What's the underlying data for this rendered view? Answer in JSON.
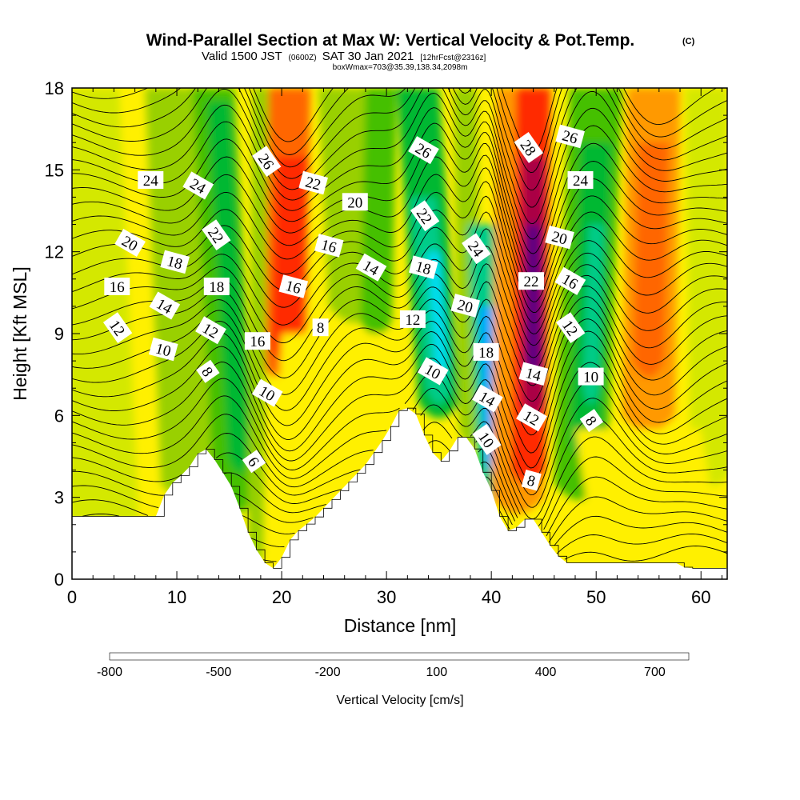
{
  "title": {
    "main": "Wind-Parallel Section at Max W: Vertical Velocity & Pot.Temp.",
    "copyright": "(C)",
    "valid_prefix": "Valid 1500 JST",
    "valid_utc": "(0600Z)",
    "valid_date": "SAT 30 Jan 2021",
    "forecast": "[12hrFcst@2316z]",
    "box_info": "boxWmax=703@35.39,138.34,2098m"
  },
  "chart_data": {
    "type": "heatmap",
    "xlabel": "Distance [nm]",
    "ylabel": "Height [Kft MSL]",
    "xlim": [
      0,
      62.5
    ],
    "ylim": [
      0,
      18
    ],
    "x_ticks": [
      "0",
      "10",
      "20",
      "30",
      "40",
      "50",
      "60"
    ],
    "y_ticks": [
      "0",
      "3",
      "6",
      "9",
      "12",
      "15",
      "18"
    ],
    "colorbar": {
      "label": "Vertical Velocity [cm/s]",
      "tick_labels": [
        "-800",
        "-500",
        "-200",
        "100",
        "400",
        "700"
      ],
      "colors": [
        "#1010ff",
        "#0055ff",
        "#00aaff",
        "#00ddee",
        "#00cc88",
        "#00b830",
        "#44c000",
        "#99d000",
        "#d4e800",
        "#fff000",
        "#ffc800",
        "#ff9900",
        "#ff6600",
        "#ff2a00",
        "#dd0000",
        "#aa0044",
        "#600080"
      ]
    },
    "terrain_height_kft": [
      {
        "x": 0,
        "h": 2.3
      },
      {
        "x": 8,
        "h": 2.3
      },
      {
        "x": 8.5,
        "h": 2.9
      },
      {
        "x": 9.5,
        "h": 3.5
      },
      {
        "x": 11,
        "h": 4.0
      },
      {
        "x": 12,
        "h": 4.6
      },
      {
        "x": 13,
        "h": 4.8
      },
      {
        "x": 14,
        "h": 4.1
      },
      {
        "x": 15,
        "h": 3.6
      },
      {
        "x": 16,
        "h": 2.6
      },
      {
        "x": 17,
        "h": 1.5
      },
      {
        "x": 18,
        "h": 0.8
      },
      {
        "x": 19,
        "h": 0.3
      },
      {
        "x": 20,
        "h": 0.8
      },
      {
        "x": 21,
        "h": 1.6
      },
      {
        "x": 23,
        "h": 2.2
      },
      {
        "x": 26,
        "h": 3.4
      },
      {
        "x": 28,
        "h": 4.2
      },
      {
        "x": 30,
        "h": 5.3
      },
      {
        "x": 31.5,
        "h": 6.4
      },
      {
        "x": 33,
        "h": 6.0
      },
      {
        "x": 34,
        "h": 4.8
      },
      {
        "x": 35.5,
        "h": 4.2
      },
      {
        "x": 36.5,
        "h": 5.2
      },
      {
        "x": 38,
        "h": 5.2
      },
      {
        "x": 39.5,
        "h": 3.6
      },
      {
        "x": 40.5,
        "h": 2.9
      },
      {
        "x": 41,
        "h": 1.9
      },
      {
        "x": 42,
        "h": 1.7
      },
      {
        "x": 43,
        "h": 2.2
      },
      {
        "x": 44,
        "h": 2.2
      },
      {
        "x": 45,
        "h": 1.6
      },
      {
        "x": 46,
        "h": 1.0
      },
      {
        "x": 47,
        "h": 0.6
      },
      {
        "x": 58,
        "h": 0.6
      },
      {
        "x": 58.5,
        "h": 0.4
      },
      {
        "x": 62.5,
        "h": 0.4
      }
    ],
    "theta_contour_labels": [
      {
        "label": "24",
        "x": 7.5,
        "y": 14.6
      },
      {
        "label": "24",
        "x": 12,
        "y": 14.4
      },
      {
        "label": "26",
        "x": 18.5,
        "y": 15.3
      },
      {
        "label": "22",
        "x": 23,
        "y": 14.5
      },
      {
        "label": "20",
        "x": 27,
        "y": 13.8
      },
      {
        "label": "26",
        "x": 33.5,
        "y": 15.7
      },
      {
        "label": "28",
        "x": 43.5,
        "y": 15.8
      },
      {
        "label": "26",
        "x": 47.5,
        "y": 16.2
      },
      {
        "label": "24",
        "x": 48.5,
        "y": 14.6
      },
      {
        "label": "20",
        "x": 5.5,
        "y": 12.3
      },
      {
        "label": "22",
        "x": 13.7,
        "y": 12.6
      },
      {
        "label": "18",
        "x": 9.8,
        "y": 11.6
      },
      {
        "label": "16",
        "x": 4.3,
        "y": 10.7
      },
      {
        "label": "14",
        "x": 8.8,
        "y": 10.0
      },
      {
        "label": "12",
        "x": 4.3,
        "y": 9.2
      },
      {
        "label": "10",
        "x": 8.7,
        "y": 8.4
      },
      {
        "label": "18",
        "x": 13.8,
        "y": 10.7
      },
      {
        "label": "12",
        "x": 13.2,
        "y": 9.1
      },
      {
        "label": "8",
        "x": 12.9,
        "y": 7.6
      },
      {
        "label": "16",
        "x": 21.1,
        "y": 10.7
      },
      {
        "label": "16",
        "x": 17.7,
        "y": 8.7
      },
      {
        "label": "10",
        "x": 18.6,
        "y": 6.8
      },
      {
        "label": "6",
        "x": 17.3,
        "y": 4.3
      },
      {
        "label": "16",
        "x": 24.5,
        "y": 12.2
      },
      {
        "label": "8",
        "x": 23.7,
        "y": 9.2
      },
      {
        "label": "14",
        "x": 28.5,
        "y": 11.4
      },
      {
        "label": "22",
        "x": 33.6,
        "y": 13.3
      },
      {
        "label": "18",
        "x": 33.5,
        "y": 11.4
      },
      {
        "label": "12",
        "x": 32.5,
        "y": 9.5
      },
      {
        "label": "10",
        "x": 34.4,
        "y": 7.6
      },
      {
        "label": "24",
        "x": 38.5,
        "y": 12.1
      },
      {
        "label": "20",
        "x": 37.5,
        "y": 10.0
      },
      {
        "label": "18",
        "x": 39.5,
        "y": 8.3
      },
      {
        "label": "14",
        "x": 39.6,
        "y": 6.6
      },
      {
        "label": "10",
        "x": 39.5,
        "y": 5.1
      },
      {
        "label": "20",
        "x": 46.5,
        "y": 12.5
      },
      {
        "label": "22",
        "x": 43.8,
        "y": 10.9
      },
      {
        "label": "16",
        "x": 47.5,
        "y": 10.9
      },
      {
        "label": "12",
        "x": 47.5,
        "y": 9.2
      },
      {
        "label": "14",
        "x": 44,
        "y": 7.5
      },
      {
        "label": "10",
        "x": 49.5,
        "y": 7.4
      },
      {
        "label": "12",
        "x": 43.8,
        "y": 5.9
      },
      {
        "label": "8",
        "x": 49.5,
        "y": 5.8
      },
      {
        "label": "8",
        "x": 43.8,
        "y": 3.6
      }
    ]
  }
}
